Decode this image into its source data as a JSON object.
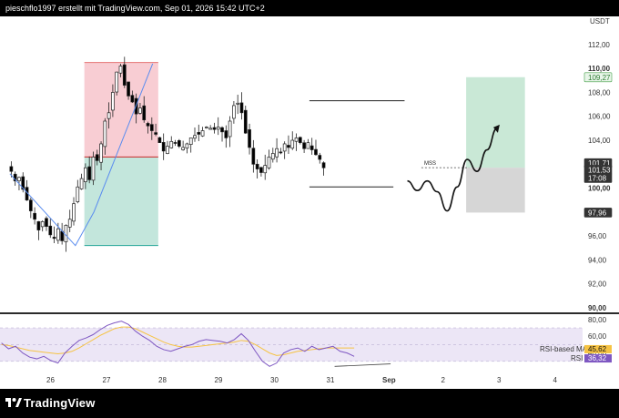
{
  "header": {
    "caption": "pieschflo1997 erstellt mit TradingView.com, Sep 01, 2026 15:42 UTC+2"
  },
  "footer": {
    "brand": "TradingView"
  },
  "chart_data": [
    {
      "type": "candlestick",
      "currency": "USDT",
      "price_ticks": [
        "112,00",
        "110,00",
        "108,00",
        "106,00",
        "104,00",
        "102,00",
        "100,00",
        "98,00",
        "96,00",
        "94,00",
        "92,00",
        "90,00"
      ],
      "ylim": [
        90,
        113
      ],
      "time_ticks": [
        "26",
        "27",
        "28",
        "29",
        "30",
        "31",
        "Sep",
        "2",
        "3",
        "4"
      ],
      "close_path": [
        101.4,
        100.6,
        100.9,
        99.9,
        99.0,
        98.1,
        97.4,
        96.5,
        97.2,
        96.8,
        96.1,
        95.8,
        96.6,
        95.6,
        96.9,
        97.4,
        98.7,
        100.1,
        100.8,
        101.7,
        100.7,
        102.6,
        102.3,
        103.7,
        105.6,
        106.3,
        108.0,
        109.7,
        110.2,
        108.6,
        107.7,
        107.2,
        106.2,
        106.7,
        105.7,
        105.2,
        104.8,
        104.5,
        103.8,
        103.1,
        103.5,
        103.9,
        103.8,
        103.5,
        103.4,
        103.7,
        104.2,
        104.4,
        104.5,
        104.8,
        105.1,
        105.0,
        104.9,
        105.1,
        104.7,
        104.2,
        105.6,
        106.9,
        107.1,
        106.3,
        104.6,
        103.4,
        102.0,
        101.6,
        101.3,
        101.9,
        102.6,
        102.9,
        103.3,
        103.0,
        103.7,
        103.4,
        104.0,
        104.2,
        103.8,
        103.3,
        103.8,
        103.2,
        102.8,
        102.4,
        101.7
      ],
      "price_badges": [
        {
          "label": "109,27",
          "value": 109.27,
          "style": "green"
        },
        {
          "label": "101,71",
          "value": 101.71,
          "style": "dark"
        },
        {
          "label": "101,53",
          "value": 101.53,
          "style": "dark"
        },
        {
          "label": "17:08",
          "value": 101.53,
          "style": "dark-sub"
        },
        {
          "label": "97,96",
          "value": 97.96,
          "style": "dark"
        }
      ],
      "annotation": "MSS",
      "zones": {
        "long_entry": 101.71,
        "long_target": 109.27,
        "long_stop": 97.96,
        "short_entry": 102.6,
        "short_target": 95.2,
        "short_stop": 110.5
      },
      "projection": [
        100.6,
        99.8,
        100.6,
        99.7,
        98.1,
        100.1,
        102.4,
        101.4,
        103.2,
        105.0
      ],
      "levels": {
        "resistance": 107.3,
        "support": 100.1
      }
    },
    {
      "type": "line",
      "indicator": "RSI",
      "y_ticks": [
        "80,00",
        "60,00",
        "40,00"
      ],
      "ylim": [
        20,
        82
      ],
      "series": [
        {
          "name": "RSI",
          "value_label": "36,32",
          "color": "#7e57c2",
          "values": [
            52,
            45,
            48,
            40,
            35,
            33,
            36,
            31,
            28,
            40,
            48,
            55,
            58,
            62,
            68,
            73,
            76,
            78,
            74,
            66,
            60,
            55,
            48,
            44,
            42,
            45,
            48,
            50,
            54,
            56,
            55,
            54,
            52,
            56,
            63,
            55,
            42,
            30,
            24,
            28,
            40,
            44,
            46,
            42,
            48,
            44,
            46,
            48,
            42,
            40,
            36
          ]
        },
        {
          "name": "RSI-based MA",
          "value_label": "45,62",
          "color": "#f6c343",
          "values": [
            50,
            49,
            47,
            45,
            43,
            42,
            41,
            40,
            39,
            40,
            42,
            46,
            51,
            56,
            61,
            65,
            69,
            71,
            71,
            69,
            65,
            61,
            57,
            53,
            50,
            48,
            47,
            47,
            48,
            49,
            50,
            51,
            52,
            53,
            55,
            54,
            50,
            45,
            40,
            37,
            38,
            40,
            42,
            43,
            44,
            45,
            46,
            46,
            46,
            46,
            46
          ]
        }
      ],
      "band": [
        30,
        70
      ]
    }
  ],
  "colors": {
    "up": "#000000",
    "down": "#000000",
    "long_profit": "#c9e8d6",
    "long_loss": "#d6d6d6",
    "short_loss": "#f8cdd3",
    "short_profit": "#c3e6dc",
    "rsi_band": "#ece6f6"
  }
}
